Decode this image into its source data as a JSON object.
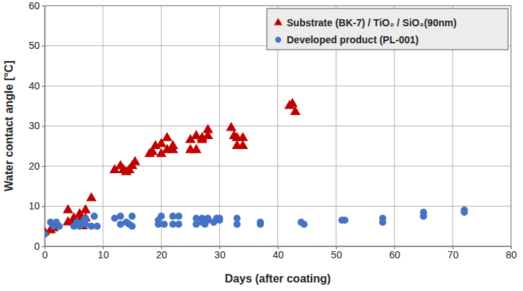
{
  "chart_data": {
    "type": "scatter",
    "x_label": "Days (after coating)",
    "y_label": "Water contact angle [°C]",
    "xlim": [
      0,
      80
    ],
    "xticks": [
      0,
      10,
      20,
      30,
      40,
      50,
      60,
      70,
      80
    ],
    "ylim": [
      0,
      60
    ],
    "yticks": [
      0,
      10,
      20,
      30,
      40,
      50,
      60
    ],
    "grid": true,
    "legend": "top-right",
    "series": [
      {
        "name": "Substrate (BK-7) / TiO₂ / SiO₂(90nm)",
        "color": "#c00000",
        "marker": "triangle",
        "x": [
          0,
          1,
          1.5,
          4,
          4,
          5,
          5,
          6,
          6,
          6.5,
          7,
          7,
          8,
          12,
          13,
          13.5,
          14,
          14.5,
          15,
          15.5,
          18,
          18.5,
          19,
          20,
          20,
          21,
          21,
          22,
          22,
          25,
          25,
          26,
          26,
          27,
          27,
          28,
          28,
          32,
          32.5,
          33,
          33,
          34,
          34,
          42,
          42.5,
          43
        ],
        "values": [
          3.5,
          4,
          4.5,
          9,
          6,
          7,
          6,
          8,
          6.5,
          5,
          9,
          7,
          12,
          19,
          20,
          19,
          18.5,
          19,
          20,
          21,
          23,
          23.5,
          25,
          23,
          25.5,
          24,
          27,
          25,
          24,
          24,
          26.5,
          24,
          27.5,
          26.5,
          27,
          27.5,
          29,
          29.5,
          27.5,
          25,
          27,
          25,
          27,
          35,
          35.5,
          33.5
        ]
      },
      {
        "name": "Developed product (PL-001)",
        "color": "#4472c4",
        "marker": "circle",
        "x": [
          0,
          1,
          1.5,
          2,
          2.5,
          5,
          5.5,
          6,
          6.5,
          7,
          7,
          8,
          8.5,
          9,
          12,
          13,
          13,
          14,
          14.5,
          15,
          15,
          19.5,
          19.5,
          20,
          20.5,
          22,
          22,
          23,
          23,
          26,
          26,
          27,
          27,
          27.5,
          28,
          28,
          29,
          29.5,
          30,
          30,
          33,
          33,
          37,
          37,
          44,
          44.5,
          51,
          51.5,
          58,
          58,
          65,
          65,
          72,
          72
        ],
        "values": [
          3,
          6,
          5,
          6,
          5,
          5,
          6,
          5,
          6,
          7,
          5.5,
          5,
          7.5,
          5,
          7,
          7.5,
          5.5,
          6,
          5.5,
          7.5,
          5,
          6.5,
          5.5,
          7.5,
          5.5,
          7.5,
          5.5,
          7.5,
          5.5,
          7,
          5.5,
          7,
          6,
          5.5,
          7,
          6.5,
          6,
          7,
          7,
          6.5,
          7,
          5.5,
          6,
          5.5,
          6,
          5.5,
          6.5,
          6.5,
          7,
          6,
          8.5,
          7.5,
          9,
          8.5
        ]
      }
    ]
  }
}
